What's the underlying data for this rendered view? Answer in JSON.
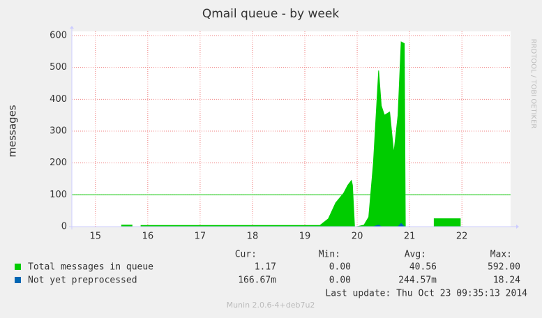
{
  "chart_data": {
    "type": "area",
    "title": "Qmail queue - by week",
    "ylabel": "messages",
    "watermark": "RRDTOOL / TOBI OETIKER",
    "x": [
      14.55,
      15.5,
      15.5,
      15.7,
      15.7,
      15.77,
      15.87,
      15.87,
      19.29,
      19.45,
      19.59,
      19.74,
      19.82,
      19.89,
      19.91,
      19.95,
      20.0,
      20.13,
      20.22,
      20.31,
      20.41,
      20.46,
      20.52,
      20.62,
      20.7,
      20.78,
      20.84,
      20.9,
      20.92,
      21.47,
      21.47,
      21.97,
      21.97,
      22.93
    ],
    "series": [
      {
        "name": "Total messages in queue",
        "color": "#00cc00",
        "values": [
          0,
          0,
          5,
          5,
          0,
          0,
          0,
          4,
          4,
          25,
          75,
          105,
          130,
          145,
          130,
          0,
          0,
          5,
          30,
          200,
          490,
          380,
          350,
          360,
          230,
          350,
          580,
          575,
          0,
          0,
          25,
          25,
          0,
          0
        ]
      },
      {
        "name": "Not yet preprocessed",
        "color": "#0066b3",
        "values": [
          0,
          0,
          0,
          0,
          0,
          0,
          0,
          0,
          0,
          0,
          0,
          0,
          0,
          0,
          0,
          0,
          0,
          0,
          0,
          0,
          5,
          0,
          0,
          0,
          0,
          0,
          10,
          0,
          0,
          0,
          0,
          0,
          0,
          0
        ]
      }
    ],
    "threshold": {
      "value": 100,
      "color": "#00cc00"
    },
    "xlim": [
      14.55,
      22.93
    ],
    "xticks": [
      15,
      16,
      17,
      18,
      19,
      20,
      21,
      22
    ],
    "ylim": [
      0,
      600
    ],
    "yticks": [
      0,
      100,
      200,
      300,
      400,
      500,
      600
    ],
    "grid": true,
    "stats": {
      "headers": [
        "Cur:",
        "Min:",
        "Avg:",
        "Max:"
      ],
      "rows": [
        [
          "1.17",
          "0.00",
          "40.56",
          "592.00"
        ],
        [
          "166.67m",
          "0.00",
          "244.57m",
          "18.24"
        ]
      ]
    },
    "last_update": "Last update:  Thu Oct 23 09:35:13 2014",
    "footer": "Munin 2.0.6-4+deb7u2"
  }
}
